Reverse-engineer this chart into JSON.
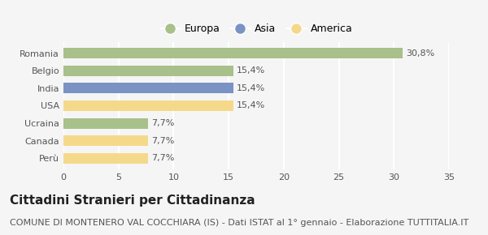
{
  "categories": [
    "Romania",
    "Belgio",
    "India",
    "USA",
    "Ucraina",
    "Canada",
    "Perù"
  ],
  "values": [
    30.8,
    15.4,
    15.4,
    15.4,
    7.7,
    7.7,
    7.7
  ],
  "labels": [
    "30,8%",
    "15,4%",
    "15,4%",
    "15,4%",
    "7,7%",
    "7,7%",
    "7,7%"
  ],
  "colors": [
    "#a8c08a",
    "#a8c08a",
    "#7b93c4",
    "#f5d98b",
    "#a8c08a",
    "#f5d98b",
    "#f5d98b"
  ],
  "legend": [
    {
      "label": "Europa",
      "color": "#a8c08a"
    },
    {
      "label": "Asia",
      "color": "#7b93c4"
    },
    {
      "label": "America",
      "color": "#f5d98b"
    }
  ],
  "xlim": [
    0,
    35
  ],
  "xticks": [
    0,
    5,
    10,
    15,
    20,
    25,
    30,
    35
  ],
  "title": "Cittadini Stranieri per Cittadinanza",
  "subtitle": "COMUNE DI MONTENERO VAL COCCHIARA (IS) - Dati ISTAT al 1° gennaio - Elaborazione TUTTITALIA.IT",
  "background_color": "#f5f5f5",
  "grid_color": "#ffffff",
  "title_fontsize": 11,
  "subtitle_fontsize": 8,
  "label_fontsize": 8,
  "tick_fontsize": 8
}
